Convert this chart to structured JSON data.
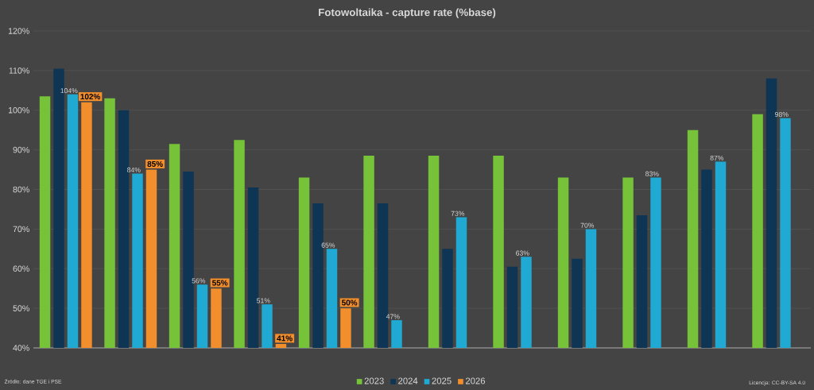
{
  "chart_data": {
    "type": "bar",
    "title": "Fotowoltaika - capture rate (%base)",
    "categories": [
      null,
      null,
      null,
      null,
      null,
      null,
      null,
      null,
      null,
      null,
      null,
      null
    ],
    "series": [
      {
        "name": "2023",
        "color": "#76c33a",
        "values": [
          103.5,
          103,
          91.5,
          92.5,
          83,
          88.5,
          88.5,
          88.5,
          83,
          83,
          95,
          99
        ]
      },
      {
        "name": "2024",
        "color": "#0e3553",
        "values": [
          110.5,
          100,
          84.5,
          80.5,
          76.5,
          76.5,
          65,
          60.5,
          62.5,
          73.5,
          85,
          108
        ]
      },
      {
        "name": "2025",
        "color": "#1fa9d3",
        "values": [
          104,
          84,
          56,
          51,
          65,
          47,
          73,
          63,
          70,
          83,
          87,
          98
        ],
        "value_labels": [
          "104%",
          "84%",
          "56%",
          "51%",
          "65%",
          "47%",
          "73%",
          "63%",
          "70%",
          "83%",
          "87%",
          "98%"
        ]
      },
      {
        "name": "2026",
        "color": "#f28e2b",
        "values": [
          102,
          85,
          55,
          41,
          50,
          null,
          null,
          null,
          null,
          null,
          null,
          null
        ],
        "value_labels": [
          "102%",
          "85%",
          "55%",
          "41%",
          "50%",
          null,
          null,
          null,
          null,
          null,
          null,
          null
        ]
      }
    ],
    "ylim": [
      40,
      120
    ],
    "yticks": [
      {
        "value": 40,
        "label": "40%"
      },
      {
        "value": 50,
        "label": "50%"
      },
      {
        "value": 60,
        "label": "60%"
      },
      {
        "value": 70,
        "label": "70%"
      },
      {
        "value": 80,
        "label": "80%"
      },
      {
        "value": 90,
        "label": "90%"
      },
      {
        "value": 100,
        "label": "100%"
      },
      {
        "value": 110,
        "label": "110%"
      },
      {
        "value": 120,
        "label": "120%"
      }
    ],
    "grid": "y",
    "legend": "bottom",
    "annotations": [
      "Źródło: dane TGE i PSE",
      "Licencja: CC-BY-SA 4.0"
    ]
  }
}
